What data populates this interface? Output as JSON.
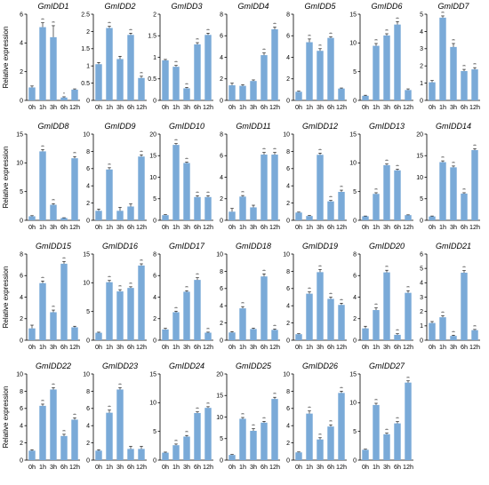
{
  "figure": {
    "ylabel": "Relative expression",
    "bar_color": "#7aaad8",
    "axis_color": "#000000"
  },
  "chart_data": [
    {
      "type": "bar",
      "title": "GmIDD1",
      "categories": [
        "0h",
        "1h",
        "3h",
        "6h",
        "12h"
      ],
      "values": [
        0.9,
        5.1,
        4.4,
        0.2,
        0.75
      ],
      "errors": [
        0.1,
        0.3,
        0.8,
        0.05,
        0.05
      ],
      "significance": [
        "",
        "**",
        "**",
        "*",
        ""
      ],
      "ylim": [
        0,
        6
      ],
      "yticks": [
        0,
        2,
        4,
        6
      ],
      "ylabel": "Relative expression"
    },
    {
      "type": "bar",
      "title": "GmIDD2",
      "categories": [
        "0h",
        "1h",
        "3h",
        "6h",
        "12h"
      ],
      "values": [
        1.05,
        2.1,
        1.2,
        1.9,
        0.65
      ],
      "errors": [
        0.05,
        0.05,
        0.08,
        0.05,
        0.05
      ],
      "significance": [
        "",
        "**",
        "",
        "**",
        "**"
      ],
      "ylim": [
        0,
        2.5
      ],
      "yticks": [
        0,
        0.5,
        1.0,
        1.5,
        2.0,
        2.5
      ]
    },
    {
      "type": "bar",
      "title": "GmIDD3",
      "categories": [
        "0h",
        "1h",
        "3h",
        "6h",
        "12h"
      ],
      "values": [
        0.93,
        0.78,
        0.28,
        1.3,
        1.52
      ],
      "errors": [
        0.02,
        0.03,
        0.02,
        0.04,
        0.04
      ],
      "significance": [
        "",
        "**",
        "**",
        "**",
        "**"
      ],
      "ylim": [
        0,
        2
      ],
      "yticks": [
        0,
        0.5,
        1.0,
        1.5,
        2.0
      ]
    },
    {
      "type": "bar",
      "title": "GmIDD4",
      "categories": [
        "0h",
        "1h",
        "3h",
        "6h",
        "12h"
      ],
      "values": [
        1.4,
        1.35,
        1.8,
        4.2,
        6.6
      ],
      "errors": [
        0.2,
        0.1,
        0.1,
        0.2,
        0.2
      ],
      "significance": [
        "",
        "",
        "",
        "**",
        "**"
      ],
      "ylim": [
        0,
        8
      ],
      "yticks": [
        0,
        2,
        4,
        6,
        8
      ]
    },
    {
      "type": "bar",
      "title": "GmIDD5",
      "categories": [
        "0h",
        "1h",
        "3h",
        "6h",
        "12h"
      ],
      "values": [
        0.8,
        5.4,
        4.6,
        5.8,
        1.1
      ],
      "errors": [
        0.05,
        0.3,
        0.2,
        0.1,
        0.05
      ],
      "significance": [
        "",
        "**",
        "**",
        "**",
        ""
      ],
      "ylim": [
        0,
        8
      ],
      "yticks": [
        0,
        2,
        4,
        6,
        8
      ]
    },
    {
      "type": "bar",
      "title": "GmIDD6",
      "categories": [
        "0h",
        "1h",
        "3h",
        "6h",
        "12h"
      ],
      "values": [
        0.8,
        9.5,
        11.3,
        13.2,
        1.8
      ],
      "errors": [
        0.1,
        0.4,
        0.3,
        0.5,
        0.2
      ],
      "significance": [
        "",
        "**",
        "**",
        "**",
        ""
      ],
      "ylim": [
        0,
        15
      ],
      "yticks": [
        0,
        5,
        10,
        15
      ]
    },
    {
      "type": "bar",
      "title": "GmIDD7",
      "categories": [
        "0h",
        "1h",
        "3h",
        "6h",
        "12h"
      ],
      "values": [
        1.05,
        4.8,
        3.1,
        1.7,
        1.8
      ],
      "errors": [
        0.1,
        0.1,
        0.2,
        0.1,
        0.1
      ],
      "significance": [
        "",
        "**",
        "**",
        "**",
        "**"
      ],
      "ylim": [
        0,
        5
      ],
      "yticks": [
        0,
        1,
        2,
        3,
        4,
        5
      ]
    },
    {
      "type": "bar",
      "title": "GmIDD8",
      "categories": [
        "0h",
        "1h",
        "3h",
        "6h",
        "12h"
      ],
      "values": [
        0.7,
        12.0,
        2.7,
        0.4,
        10.8
      ],
      "errors": [
        0.1,
        0.3,
        0.2,
        0.05,
        0.3
      ],
      "significance": [
        "",
        "**",
        "**",
        "",
        "**"
      ],
      "ylim": [
        0,
        15
      ],
      "yticks": [
        0,
        5,
        10,
        15
      ],
      "ylabel": "Relative expression"
    },
    {
      "type": "bar",
      "title": "GmIDD9",
      "categories": [
        "0h",
        "1h",
        "3h",
        "6h",
        "12h"
      ],
      "values": [
        1.1,
        5.9,
        1.1,
        1.6,
        7.4
      ],
      "errors": [
        0.2,
        0.2,
        0.4,
        0.3,
        0.2
      ],
      "significance": [
        "",
        "**",
        "",
        "",
        "**"
      ],
      "ylim": [
        0,
        10
      ],
      "yticks": [
        0,
        2,
        4,
        6,
        8,
        10
      ]
    },
    {
      "type": "bar",
      "title": "GmIDD10",
      "categories": [
        "0h",
        "1h",
        "3h",
        "6h",
        "12h"
      ],
      "values": [
        1.2,
        17.5,
        13.3,
        5.4,
        5.4
      ],
      "errors": [
        0.1,
        0.3,
        0.2,
        0.3,
        0.3
      ],
      "significance": [
        "",
        "**",
        "**",
        "**",
        "**"
      ],
      "ylim": [
        0,
        20
      ],
      "yticks": [
        0,
        5,
        10,
        15,
        20
      ]
    },
    {
      "type": "bar",
      "title": "GmIDD11",
      "categories": [
        "0h",
        "1h",
        "3h",
        "6h",
        "12h"
      ],
      "values": [
        0.8,
        2.2,
        1.2,
        6.1,
        6.1
      ],
      "errors": [
        0.3,
        0.1,
        0.2,
        0.2,
        0.2
      ],
      "significance": [
        "",
        "**",
        "",
        "**",
        "**"
      ],
      "ylim": [
        0,
        8
      ],
      "yticks": [
        0,
        2,
        4,
        6,
        8
      ]
    },
    {
      "type": "bar",
      "title": "GmIDD12",
      "categories": [
        "0h",
        "1h",
        "3h",
        "6h",
        "12h"
      ],
      "values": [
        0.9,
        0.5,
        7.6,
        2.2,
        3.3
      ],
      "errors": [
        0.05,
        0.05,
        0.2,
        0.1,
        0.2
      ],
      "significance": [
        "",
        "",
        "**",
        "**",
        "**"
      ],
      "ylim": [
        0,
        10
      ],
      "yticks": [
        0,
        2,
        4,
        6,
        8,
        10
      ]
    },
    {
      "type": "bar",
      "title": "GmIDD13",
      "categories": [
        "0h",
        "1h",
        "3h",
        "6h",
        "12h"
      ],
      "values": [
        0.7,
        4.6,
        9.6,
        8.7,
        0.9
      ],
      "errors": [
        0.05,
        0.2,
        0.2,
        0.2,
        0.05
      ],
      "significance": [
        "",
        "**",
        "**",
        "**",
        ""
      ],
      "ylim": [
        0,
        15
      ],
      "yticks": [
        0,
        5,
        10,
        15
      ]
    },
    {
      "type": "bar",
      "title": "GmIDD14",
      "categories": [
        "0h",
        "1h",
        "3h",
        "6h",
        "12h"
      ],
      "values": [
        0.9,
        13.5,
        12.3,
        6.2,
        16.3
      ],
      "errors": [
        0.1,
        0.3,
        0.3,
        0.2,
        0.3
      ],
      "significance": [
        "",
        "**",
        "**",
        "**",
        "**"
      ],
      "ylim": [
        0,
        20
      ],
      "yticks": [
        0,
        5,
        10,
        15,
        20
      ]
    },
    {
      "type": "bar",
      "title": "GmIDD15",
      "categories": [
        "0h",
        "1h",
        "3h",
        "6h",
        "12h"
      ],
      "values": [
        1.1,
        5.3,
        2.6,
        7.1,
        1.2
      ],
      "errors": [
        0.3,
        0.2,
        0.2,
        0.2,
        0.1
      ],
      "significance": [
        "",
        "**",
        "**",
        "**",
        ""
      ],
      "ylim": [
        0,
        8
      ],
      "yticks": [
        0,
        2,
        4,
        6,
        8
      ],
      "ylabel": "Relative expression"
    },
    {
      "type": "bar",
      "title": "GmIDD16",
      "categories": [
        "0h",
        "1h",
        "3h",
        "6h",
        "12h"
      ],
      "values": [
        1.3,
        10.1,
        8.5,
        9.1,
        13.0
      ],
      "errors": [
        0.1,
        0.3,
        0.3,
        0.2,
        0.3
      ],
      "significance": [
        "",
        "**",
        "**",
        "**",
        "**"
      ],
      "ylim": [
        0,
        15
      ],
      "yticks": [
        0,
        5,
        10,
        15
      ]
    },
    {
      "type": "bar",
      "title": "GmIDD17",
      "categories": [
        "0h",
        "1h",
        "3h",
        "6h",
        "12h"
      ],
      "values": [
        1.0,
        2.6,
        4.5,
        5.6,
        0.7
      ],
      "errors": [
        0.1,
        0.1,
        0.1,
        0.2,
        0.05
      ],
      "significance": [
        "",
        "**",
        "**",
        "**",
        "**"
      ],
      "ylim": [
        0,
        8
      ],
      "yticks": [
        0,
        2,
        4,
        6,
        8
      ]
    },
    {
      "type": "bar",
      "title": "GmIDD18",
      "categories": [
        "0h",
        "1h",
        "3h",
        "6h",
        "12h"
      ],
      "values": [
        0.9,
        3.7,
        1.3,
        7.4,
        1.2
      ],
      "errors": [
        0.1,
        0.2,
        0.1,
        0.3,
        0.1
      ],
      "significance": [
        "",
        "**",
        "",
        "**",
        "**"
      ],
      "ylim": [
        0,
        10
      ],
      "yticks": [
        0,
        2,
        4,
        6,
        8,
        10
      ]
    },
    {
      "type": "bar",
      "title": "GmIDD19",
      "categories": [
        "0h",
        "1h",
        "3h",
        "6h",
        "12h"
      ],
      "values": [
        0.7,
        5.4,
        7.9,
        4.8,
        4.1
      ],
      "errors": [
        0.05,
        0.2,
        0.3,
        0.2,
        0.2
      ],
      "significance": [
        "",
        "**",
        "**",
        "**",
        "**"
      ],
      "ylim": [
        0,
        10
      ],
      "yticks": [
        0,
        2,
        4,
        6,
        8,
        10
      ]
    },
    {
      "type": "bar",
      "title": "GmIDD20",
      "categories": [
        "0h",
        "1h",
        "3h",
        "6h",
        "12h"
      ],
      "values": [
        1.1,
        2.8,
        6.3,
        0.5,
        4.4
      ],
      "errors": [
        0.2,
        0.2,
        0.2,
        0.1,
        0.2
      ],
      "significance": [
        "",
        "**",
        "**",
        "**",
        "**"
      ],
      "ylim": [
        0,
        8
      ],
      "yticks": [
        0,
        2,
        4,
        6,
        8
      ]
    },
    {
      "type": "bar",
      "title": "GmIDD21",
      "categories": [
        "0h",
        "1h",
        "3h",
        "6h",
        "12h"
      ],
      "values": [
        1.2,
        1.6,
        0.3,
        4.7,
        0.7
      ],
      "errors": [
        0.1,
        0.1,
        0.05,
        0.15,
        0.05
      ],
      "significance": [
        "",
        "**",
        "**",
        "**",
        "**"
      ],
      "ylim": [
        0,
        6
      ],
      "yticks": [
        0,
        1,
        2,
        3,
        4,
        5,
        6
      ]
    },
    {
      "type": "bar",
      "title": "GmIDD22",
      "categories": [
        "0h",
        "1h",
        "3h",
        "6h",
        "12h"
      ],
      "values": [
        1.1,
        6.3,
        8.2,
        2.8,
        4.7
      ],
      "errors": [
        0.1,
        0.2,
        0.2,
        0.2,
        0.2
      ],
      "significance": [
        "",
        "**",
        "**",
        "**",
        "**"
      ],
      "ylim": [
        0,
        10
      ],
      "yticks": [
        0,
        2,
        4,
        6,
        8,
        10
      ],
      "ylabel": "Relative expression"
    },
    {
      "type": "bar",
      "title": "GmIDD23",
      "categories": [
        "0h",
        "1h",
        "3h",
        "6h",
        "12h"
      ],
      "values": [
        1.1,
        5.5,
        8.2,
        1.3,
        1.3
      ],
      "errors": [
        0.1,
        0.3,
        0.2,
        0.3,
        0.3
      ],
      "significance": [
        "",
        "**",
        "**",
        "",
        ""
      ],
      "ylim": [
        0,
        10
      ],
      "yticks": [
        0,
        2,
        4,
        6,
        8,
        10
      ]
    },
    {
      "type": "bar",
      "title": "GmIDD24",
      "categories": [
        "0h",
        "1h",
        "3h",
        "6h",
        "12h"
      ],
      "values": [
        1.3,
        2.6,
        4.1,
        8.2,
        9.1
      ],
      "errors": [
        0.1,
        0.2,
        0.2,
        0.2,
        0.2
      ],
      "significance": [
        "",
        "**",
        "**",
        "**",
        "**"
      ],
      "ylim": [
        0,
        15
      ],
      "yticks": [
        0,
        5,
        10,
        15
      ]
    },
    {
      "type": "bar",
      "title": "GmIDD25",
      "categories": [
        "0h",
        "1h",
        "3h",
        "6h",
        "12h"
      ],
      "values": [
        1.2,
        9.6,
        6.8,
        8.7,
        14.2
      ],
      "errors": [
        0.1,
        0.3,
        0.5,
        0.3,
        0.4
      ],
      "significance": [
        "",
        "**",
        "**",
        "**",
        "**"
      ],
      "ylim": [
        0,
        20
      ],
      "yticks": [
        0,
        5,
        10,
        15,
        20
      ]
    },
    {
      "type": "bar",
      "title": "GmIDD26",
      "categories": [
        "0h",
        "1h",
        "3h",
        "6h",
        "12h"
      ],
      "values": [
        0.9,
        5.4,
        2.4,
        3.9,
        7.8
      ],
      "errors": [
        0.05,
        0.3,
        0.2,
        0.2,
        0.2
      ],
      "significance": [
        "",
        "**",
        "**",
        "**",
        "**"
      ],
      "ylim": [
        0,
        10
      ],
      "yticks": [
        0,
        2,
        4,
        6,
        8,
        10
      ]
    },
    {
      "type": "bar",
      "title": "GmIDD27",
      "categories": [
        "0h",
        "1h",
        "3h",
        "6h",
        "12h"
      ],
      "values": [
        1.8,
        9.6,
        4.5,
        6.4,
        13.5
      ],
      "errors": [
        0.1,
        0.3,
        0.2,
        0.3,
        0.3
      ],
      "significance": [
        "",
        "**",
        "**",
        "**",
        "**"
      ],
      "ylim": [
        0,
        15
      ],
      "yticks": [
        0,
        5,
        10,
        15
      ]
    }
  ]
}
